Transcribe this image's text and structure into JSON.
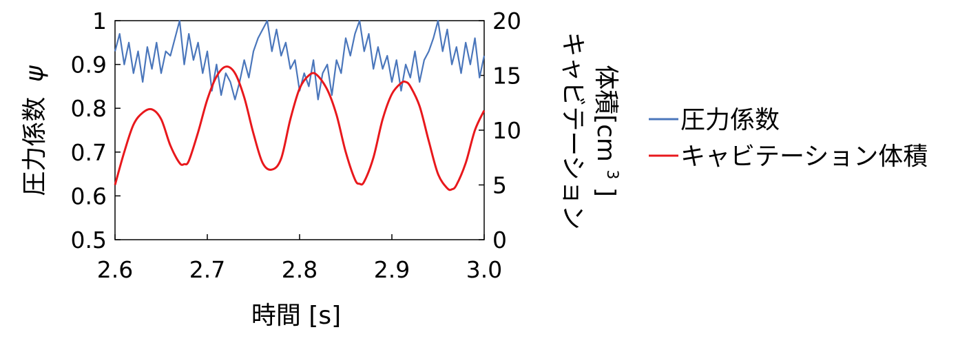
{
  "chart_data": {
    "type": "line",
    "xlabel": "時間 [s]",
    "ylabel_left": "圧力係数",
    "ylabel_left_symbol": "ψ",
    "ylabel_right_line1": "キャビテーション",
    "ylabel_right_line2": "体積[cm",
    "ylabel_right_sup": "3",
    "ylabel_right_close": "]",
    "xlim": [
      2.6,
      3.0
    ],
    "ylim_left": [
      0.5,
      1.0
    ],
    "ylim_right": [
      0,
      20
    ],
    "x_ticks": [
      "2.6",
      "2.7",
      "2.8",
      "2.9",
      "3.0"
    ],
    "y_ticks_left": [
      "0.5",
      "0.6",
      "0.7",
      "0.8",
      "0.9",
      "1"
    ],
    "y_ticks_right": [
      "0",
      "5",
      "10",
      "15",
      "20"
    ],
    "grid": false,
    "legend_position": "right",
    "series": [
      {
        "name": "圧力係数",
        "axis": "left",
        "color": "#4a76bb",
        "x": [
          2.6,
          2.605,
          2.61,
          2.615,
          2.62,
          2.625,
          2.63,
          2.635,
          2.64,
          2.645,
          2.65,
          2.655,
          2.66,
          2.665,
          2.67,
          2.675,
          2.68,
          2.685,
          2.69,
          2.695,
          2.7,
          2.705,
          2.71,
          2.715,
          2.72,
          2.725,
          2.73,
          2.735,
          2.74,
          2.745,
          2.75,
          2.755,
          2.76,
          2.765,
          2.77,
          2.775,
          2.78,
          2.785,
          2.79,
          2.795,
          2.8,
          2.805,
          2.81,
          2.815,
          2.82,
          2.825,
          2.83,
          2.835,
          2.84,
          2.845,
          2.85,
          2.855,
          2.86,
          2.865,
          2.87,
          2.875,
          2.88,
          2.885,
          2.89,
          2.895,
          2.9,
          2.905,
          2.91,
          2.915,
          2.92,
          2.925,
          2.93,
          2.935,
          2.94,
          2.945,
          2.95,
          2.955,
          2.96,
          2.965,
          2.97,
          2.975,
          2.98,
          2.985,
          2.99,
          2.995,
          3.0
        ],
        "y": [
          0.93,
          0.97,
          0.9,
          0.95,
          0.88,
          0.93,
          0.86,
          0.94,
          0.89,
          0.95,
          0.88,
          0.93,
          0.92,
          0.96,
          1.0,
          0.9,
          0.97,
          0.91,
          0.95,
          0.88,
          0.93,
          0.84,
          0.9,
          0.83,
          0.88,
          0.86,
          0.82,
          0.86,
          0.91,
          0.87,
          0.93,
          0.96,
          0.98,
          1.0,
          0.93,
          0.98,
          0.92,
          0.95,
          0.89,
          0.91,
          0.84,
          0.88,
          0.85,
          0.91,
          0.82,
          0.88,
          0.9,
          0.83,
          0.91,
          0.88,
          0.96,
          0.92,
          0.97,
          1.0,
          0.93,
          0.97,
          0.89,
          0.94,
          0.89,
          0.92,
          0.86,
          0.91,
          0.84,
          0.9,
          0.87,
          0.93,
          0.86,
          0.91,
          0.93,
          0.96,
          1.0,
          0.93,
          0.98,
          0.9,
          0.94,
          0.88,
          0.95,
          0.9,
          0.96,
          0.87,
          0.92
        ]
      },
      {
        "name": "キャビテーション体積",
        "axis": "right",
        "color": "#e8181c",
        "x": [
          2.6,
          2.61,
          2.62,
          2.63,
          2.64,
          2.65,
          2.66,
          2.67,
          2.675,
          2.68,
          2.69,
          2.7,
          2.71,
          2.72,
          2.73,
          2.74,
          2.75,
          2.76,
          2.77,
          2.78,
          2.79,
          2.8,
          2.81,
          2.818,
          2.83,
          2.84,
          2.85,
          2.86,
          2.865,
          2.87,
          2.88,
          2.89,
          2.9,
          2.91,
          2.915,
          2.92,
          2.93,
          2.94,
          2.95,
          2.96,
          2.965,
          2.97,
          2.98,
          2.99,
          3.0
        ],
        "y": [
          5.0,
          8.0,
          10.5,
          11.6,
          11.9,
          11.0,
          8.6,
          7.0,
          6.9,
          7.2,
          9.8,
          12.8,
          14.9,
          15.8,
          15.2,
          13.0,
          9.7,
          7.0,
          6.4,
          7.4,
          11.0,
          13.8,
          15.0,
          15.1,
          13.7,
          11.4,
          8.0,
          5.5,
          5.1,
          5.3,
          7.5,
          11.0,
          13.3,
          14.3,
          14.4,
          14.0,
          12.2,
          9.0,
          6.0,
          4.7,
          4.6,
          5.0,
          7.0,
          10.0,
          11.8
        ]
      }
    ]
  }
}
